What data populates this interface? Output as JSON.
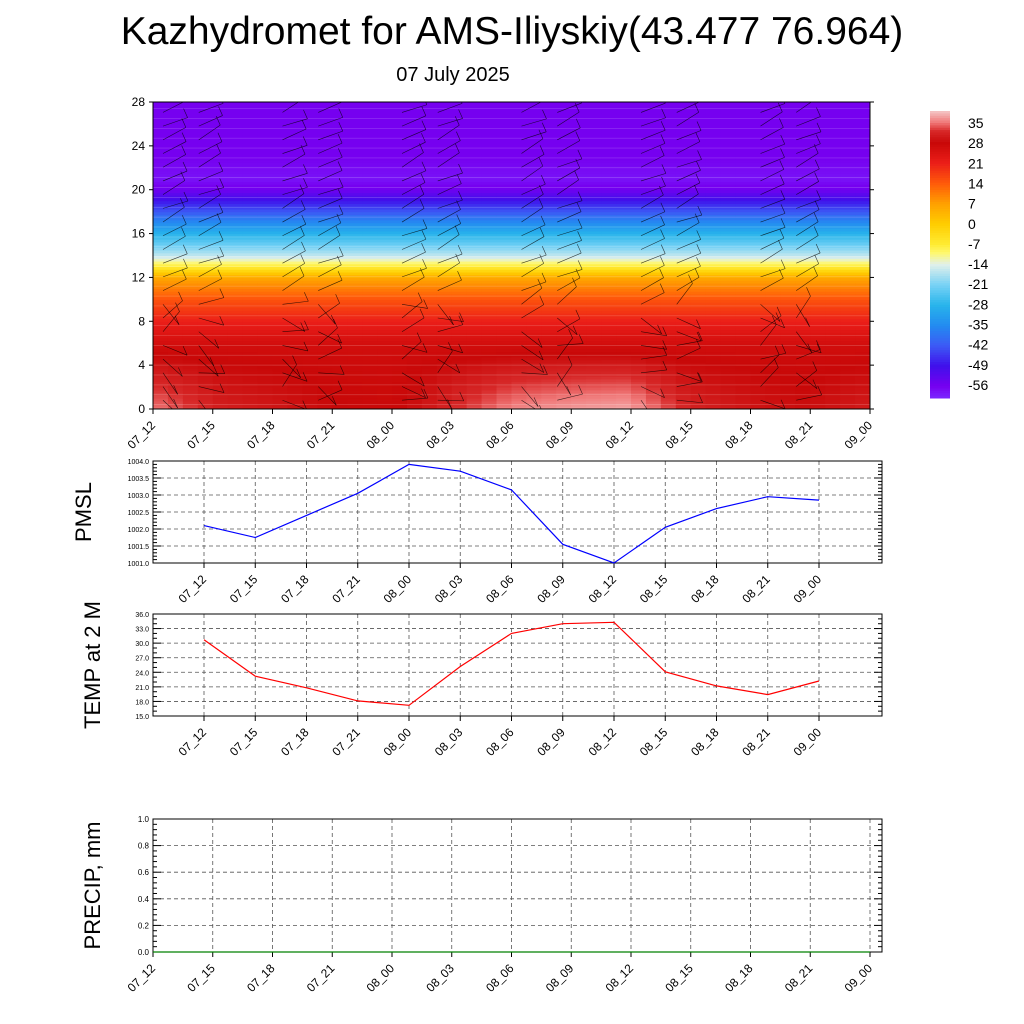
{
  "title": "Kazhydromet for AMS-Iliyskiy(43.477 76.964)",
  "subtitle": "07 July 2025",
  "chart_data": [
    {
      "type": "heatmap",
      "description_note": "",
      "x_ticks": [
        "07_12",
        "07_15",
        "07_18",
        "07_21",
        "08_00",
        "08_03",
        "08_06",
        "08_09",
        "08_12",
        "08_15",
        "08_18",
        "08_21",
        "09_00"
      ],
      "y_ticks": [
        "0",
        "4",
        "8",
        "12",
        "16",
        "20",
        "24",
        "28"
      ],
      "ylim": [
        0,
        28
      ],
      "colorbar": {
        "labels": [
          "35",
          "28",
          "21",
          "14",
          "7",
          "0",
          "-7",
          "-14",
          "-21",
          "-28",
          "-35",
          "-42",
          "-49",
          "-56"
        ],
        "range": [
          -60,
          39
        ]
      },
      "temperature_profile": [
        {
          "h": 0,
          "t": 33
        },
        {
          "h": 2,
          "t": 31
        },
        {
          "h": 4,
          "t": 29
        },
        {
          "h": 6,
          "t": 26
        },
        {
          "h": 8,
          "t": 21
        },
        {
          "h": 10,
          "t": 15
        },
        {
          "h": 12,
          "t": 6
        },
        {
          "h": 13,
          "t": -7
        },
        {
          "h": 14,
          "t": -16
        },
        {
          "h": 16,
          "t": -28
        },
        {
          "h": 18,
          "t": -42
        },
        {
          "h": 20,
          "t": -55
        },
        {
          "h": 21,
          "t": -58
        },
        {
          "h": 23,
          "t": -56
        },
        {
          "h": 28,
          "t": -56
        }
      ],
      "surface_temperature_by_time": [
        30,
        23,
        21,
        18,
        17,
        25,
        32,
        34,
        35,
        24,
        21,
        19,
        22
      ]
    },
    {
      "type": "line",
      "ylabel": "PMSL",
      "x": [
        "07_12",
        "07_15",
        "07_18",
        "07_21",
        "08_00",
        "08_03",
        "08_06",
        "08_09",
        "08_12",
        "08_15",
        "08_18",
        "08_21",
        "09_00"
      ],
      "series": [
        {
          "values": [
            1002.1,
            1001.75,
            1002.4,
            1003.05,
            1003.9,
            1003.7,
            1003.15,
            1001.55,
            1001.0,
            1002.05,
            1002.6,
            1002.95,
            1002.85
          ],
          "color": "#0000ff"
        }
      ],
      "y_ticks": [
        "1001.0",
        "1001.5",
        "1002.0",
        "1002.5",
        "1003.0",
        "1003.5",
        "1004.0"
      ],
      "ylim": [
        1001.0,
        1004.0
      ],
      "grid": true
    },
    {
      "type": "line",
      "ylabel": "TEMP at 2 M",
      "x": [
        "07_12",
        "07_15",
        "07_18",
        "07_21",
        "08_00",
        "08_03",
        "08_06",
        "08_09",
        "08_12",
        "08_15",
        "08_18",
        "08_21",
        "09_00"
      ],
      "series": [
        {
          "values": [
            30.7,
            23.2,
            20.8,
            18.1,
            17.2,
            25.2,
            32.0,
            34.0,
            34.3,
            24.1,
            21.2,
            19.4,
            22.2
          ],
          "color": "#ff0000"
        }
      ],
      "y_ticks": [
        "15.0",
        "18.0",
        "21.0",
        "24.0",
        "27.0",
        "30.0",
        "33.0",
        "36.0"
      ],
      "ylim": [
        15.0,
        36.0
      ],
      "grid": true
    },
    {
      "type": "line",
      "ylabel": "PRECIP, mm",
      "x": [
        "07_12",
        "07_15",
        "07_18",
        "07_21",
        "08_00",
        "08_03",
        "08_06",
        "08_09",
        "08_12",
        "08_15",
        "08_18",
        "08_21",
        "09_00"
      ],
      "series": [
        {
          "values": [
            0,
            0,
            0,
            0,
            0,
            0,
            0,
            0,
            0,
            0,
            0,
            0,
            0
          ],
          "color": "#008000"
        }
      ],
      "y_ticks": [
        "0.0",
        "0.2",
        "0.4",
        "0.6",
        "0.8",
        "1.0"
      ],
      "ylim": [
        0.0,
        1.0
      ],
      "grid": true
    }
  ]
}
